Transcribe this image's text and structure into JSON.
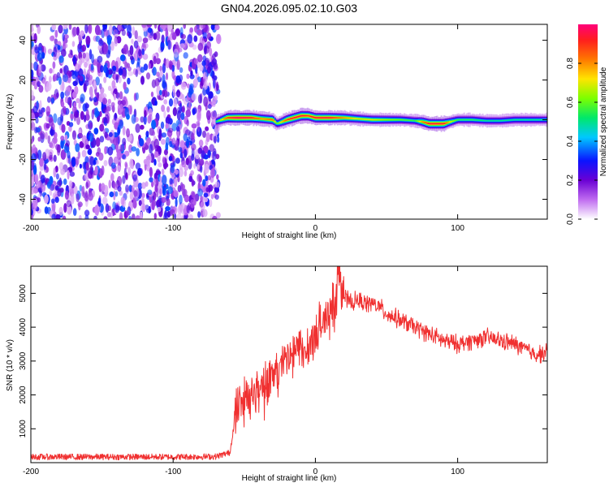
{
  "figure_title": "GN04.2026.095.02.10.G03",
  "chart_data": [
    {
      "type": "heatmap",
      "title": "GN04.2026.095.02.10.G03",
      "xlabel": "Height of straight line (km)",
      "ylabel": "Frequency (Hz)",
      "xlim": [
        -200,
        163
      ],
      "ylim": [
        -50,
        48
      ],
      "xticks": [
        -200,
        -100,
        0,
        100
      ],
      "yticks": [
        -40,
        -20,
        0,
        20,
        40
      ],
      "noise_region_x": [
        -200,
        -68
      ],
      "signal_region_x": [
        -70,
        163
      ],
      "trace": {
        "x": [
          -70,
          -66,
          -62,
          -55,
          -45,
          -38,
          -30,
          -27,
          -20,
          -15,
          -10,
          -5,
          0,
          10,
          20,
          30,
          40,
          50,
          60,
          70,
          75,
          80,
          85,
          90,
          95,
          100,
          110,
          120,
          130,
          140,
          150,
          163
        ],
        "freq_hz": [
          -1,
          0,
          1,
          1,
          1,
          0.5,
          0,
          -2,
          0,
          1,
          2,
          2,
          1,
          1,
          1,
          0.5,
          0,
          0,
          0,
          -0.5,
          -1,
          -2,
          -2,
          -2,
          -1,
          0,
          0,
          -0.5,
          -0.5,
          0,
          0,
          0
        ],
        "amplitude": [
          0.5,
          0.7,
          0.9,
          1.0,
          0.95,
          0.8,
          0.85,
          0.6,
          0.9,
          0.95,
          0.95,
          0.9,
          0.95,
          0.95,
          0.8,
          0.7,
          0.7,
          0.65,
          0.6,
          0.55,
          0.8,
          0.95,
          0.95,
          0.95,
          0.7,
          0.55,
          0.55,
          0.5,
          0.5,
          0.5,
          0.5,
          0.5
        ]
      },
      "colorbar": {
        "label": "Normalized spectral amplitude",
        "range": [
          0,
          1
        ],
        "ticks": [
          0.0,
          0.2,
          0.4,
          0.6,
          0.8
        ],
        "tick_labels": [
          "0.0",
          "0.2",
          "0.4",
          "0.6",
          "0.8"
        ],
        "colors": [
          "#ffffff",
          "#c06cf0",
          "#6a00d4",
          "#0a14ff",
          "#00c8ff",
          "#00e86a",
          "#7cff00",
          "#ffe400",
          "#ff7800",
          "#ff1e1e",
          "#ff007a"
        ]
      }
    },
    {
      "type": "line",
      "xlabel": "Height of straight line (km)",
      "ylabel": "SNR (10 * v/v)",
      "xlim": [
        -200,
        163
      ],
      "ylim": [
        0,
        5800
      ],
      "xticks": [
        -200,
        -100,
        0,
        100
      ],
      "yticks": [
        1000,
        2000,
        3000,
        4000,
        5000
      ],
      "line_color": "#f03030",
      "series": [
        {
          "name": "SNR",
          "x": [
            -200,
            -150,
            -100,
            -70,
            -60,
            -57,
            -55,
            -50,
            -45,
            -40,
            -35,
            -30,
            -25,
            -20,
            -15,
            -10,
            -5,
            0,
            5,
            10,
            15,
            17,
            20,
            25,
            30,
            35,
            40,
            45,
            50,
            55,
            60,
            70,
            80,
            90,
            100,
            110,
            120,
            130,
            140,
            150,
            155,
            163
          ],
          "values": [
            170,
            170,
            170,
            180,
            300,
            1200,
            1700,
            1900,
            2000,
            2250,
            2450,
            2600,
            2800,
            3000,
            3200,
            3400,
            3500,
            3750,
            4100,
            4500,
            5000,
            5800,
            4900,
            4700,
            4800,
            4700,
            4700,
            4600,
            4400,
            4300,
            4200,
            4000,
            3800,
            3600,
            3500,
            3600,
            3700,
            3600,
            3500,
            3300,
            3200,
            3250
          ]
        }
      ]
    }
  ]
}
